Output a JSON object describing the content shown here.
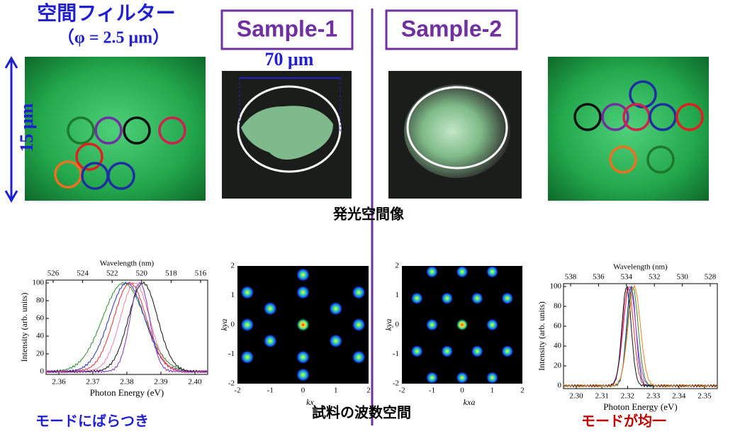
{
  "header": {
    "filter_title": "空間フィルター",
    "filter_size": "（φ = 2.5 μm）",
    "sample1": "Sample-1",
    "sample2": "Sample-2"
  },
  "scale_labels": {
    "width": "70 μm",
    "height": "15 μm"
  },
  "captions": {
    "emission": "発光空間像",
    "wavespace": "試料の波数空間",
    "left": "モードにばらつき",
    "right": "モードが均一"
  },
  "spectrum_left": {
    "top_axis_label": "Wavelength (nm)",
    "top_ticks": [
      "526",
      "524",
      "522",
      "520",
      "518",
      "516"
    ],
    "y_label": "Intensity (arb. units)",
    "y_ticks": [
      "0",
      "20",
      "40",
      "60",
      "80",
      "100"
    ],
    "x_label": "Photon Energy (eV)",
    "x_ticks": [
      "2.36",
      "2.37",
      "2.38",
      "2.39",
      "2.40"
    ]
  },
  "kspace_1": {
    "x_label": "kx",
    "y_label": "kya",
    "x_ticks": [
      "-2",
      "-1",
      "0",
      "1",
      "2"
    ],
    "y_ticks": [
      "2",
      "1",
      "0",
      "-1",
      "-2"
    ]
  },
  "kspace_2": {
    "x_label": "kxa",
    "y_label": "kya",
    "x_ticks": [
      "-2",
      "-1",
      "0",
      "1",
      "2"
    ],
    "y_ticks": [
      "2",
      "1",
      "0",
      "-1",
      "-2"
    ]
  },
  "spectrum_right": {
    "top_axis_label": "Wavelength (nm)",
    "top_ticks": [
      "538",
      "536",
      "534",
      "532",
      "530",
      "528"
    ],
    "y_label": "Intensity (arb. units)",
    "y_ticks": [
      "0",
      "20",
      "40",
      "60",
      "80",
      "100"
    ],
    "x_label": "Photon Energy (eV)",
    "x_ticks": [
      "2.30",
      "2.31",
      "2.32",
      "2.33",
      "2.34",
      "2.35"
    ]
  }
}
